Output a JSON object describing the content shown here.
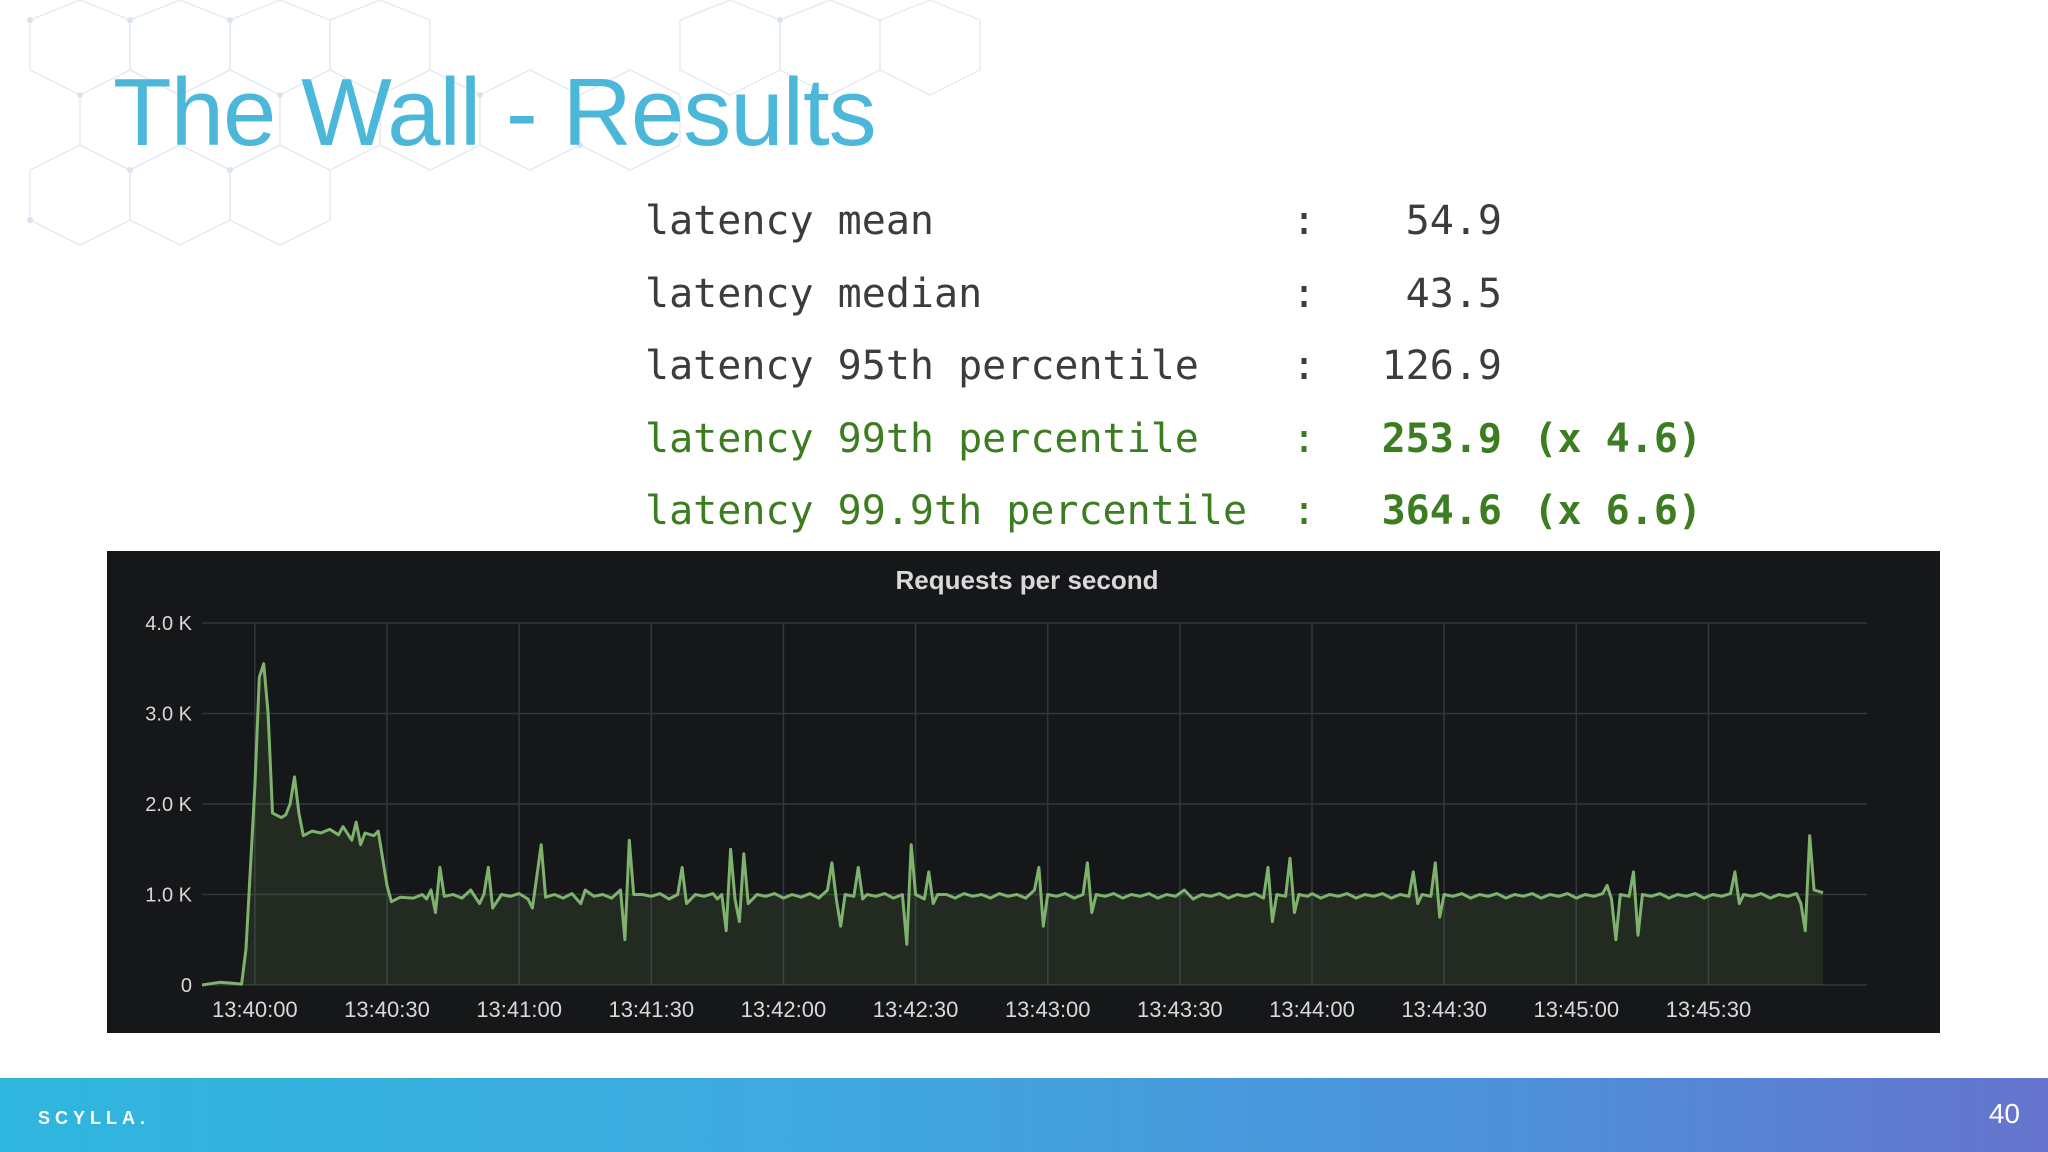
{
  "slide": {
    "title": "The Wall - Results",
    "page_number": "40",
    "logo_text": "SCYLLA.",
    "colors": {
      "title": "#4cb8d9",
      "highlight": "#3b7d20",
      "series": "#7eb26d",
      "panel": "#161719"
    }
  },
  "stats": [
    {
      "label": "latency mean",
      "colon": ":",
      "value": "54.9",
      "factor": "",
      "highlight": false
    },
    {
      "label": "latency median",
      "colon": ":",
      "value": "43.5",
      "factor": "",
      "highlight": false
    },
    {
      "label": "latency 95th percentile",
      "colon": ":",
      "value": "126.9",
      "factor": "",
      "highlight": false
    },
    {
      "label": "latency 99th percentile",
      "colon": ":",
      "value": "253.9",
      "factor": "(x 4.6)",
      "highlight": true
    },
    {
      "label": "latency 99.9th percentile",
      "colon": ":",
      "value": "364.6",
      "factor": "(x 6.6)",
      "highlight": true
    }
  ],
  "chart_data": {
    "type": "area",
    "title": "Requests per second",
    "xlabel": "",
    "ylabel": "",
    "x_range": [
      "13:39:48",
      "13:46:06"
    ],
    "ylim": [
      0,
      4000
    ],
    "y_ticks": [
      0,
      1000,
      2000,
      3000,
      4000
    ],
    "y_tick_labels": [
      "0",
      "1.0 K",
      "2.0 K",
      "3.0 K",
      "4.0 K"
    ],
    "x_tick_values": [
      "13:40:00",
      "13:40:30",
      "13:41:00",
      "13:41:30",
      "13:42:00",
      "13:42:30",
      "13:43:00",
      "13:43:30",
      "13:44:00",
      "13:44:30",
      "13:45:00",
      "13:45:30"
    ],
    "x_tick_labels": [
      "13:40:00",
      "13:40:30",
      "13:41:00",
      "13:41:30",
      "13:42:00",
      "13:42:30",
      "13:43:00",
      "13:43:30",
      "13:44:00",
      "13:44:30",
      "13:45:00",
      "13:45:30"
    ],
    "grid": true,
    "legend": "none",
    "series": [
      {
        "color": "#7eb26d",
        "points": [
          [
            "13:39:48",
            0
          ],
          [
            "13:39:52",
            30
          ],
          [
            "13:39:55",
            20
          ],
          [
            "13:39:57",
            10
          ],
          [
            "13:39:58",
            400
          ],
          [
            "13:40:00",
            2200
          ],
          [
            "13:40:01",
            3400
          ],
          [
            "13:40:02",
            3550
          ],
          [
            "13:40:03",
            3000
          ],
          [
            "13:40:04",
            1900
          ],
          [
            "13:40:06",
            1850
          ],
          [
            "13:40:07",
            1880
          ],
          [
            "13:40:08",
            2000
          ],
          [
            "13:40:09",
            2300
          ],
          [
            "13:40:10",
            1900
          ],
          [
            "13:40:11",
            1650
          ],
          [
            "13:40:13",
            1700
          ],
          [
            "13:40:15",
            1680
          ],
          [
            "13:40:17",
            1720
          ],
          [
            "13:40:19",
            1660
          ],
          [
            "13:40:20",
            1750
          ],
          [
            "13:40:22",
            1600
          ],
          [
            "13:40:23",
            1800
          ],
          [
            "13:40:24",
            1550
          ],
          [
            "13:40:25",
            1680
          ],
          [
            "13:40:27",
            1650
          ],
          [
            "13:40:28",
            1700
          ],
          [
            "13:40:29",
            1400
          ],
          [
            "13:40:30",
            1100
          ],
          [
            "13:40:31",
            920
          ],
          [
            "13:40:33",
            970
          ],
          [
            "13:40:36",
            960
          ],
          [
            "13:40:38",
            1000
          ],
          [
            "13:40:39",
            950
          ],
          [
            "13:40:40",
            1050
          ],
          [
            "13:40:41",
            800
          ],
          [
            "13:40:42",
            1300
          ],
          [
            "13:40:43",
            980
          ],
          [
            "13:40:45",
            1000
          ],
          [
            "13:40:47",
            960
          ],
          [
            "13:40:49",
            1050
          ],
          [
            "13:40:51",
            900
          ],
          [
            "13:40:52",
            1000
          ],
          [
            "13:40:53",
            1300
          ],
          [
            "13:40:54",
            850
          ],
          [
            "13:40:56",
            1000
          ],
          [
            "13:40:58",
            980
          ],
          [
            "13:41:00",
            1010
          ],
          [
            "13:41:02",
            950
          ],
          [
            "13:41:03",
            850
          ],
          [
            "13:41:05",
            1550
          ],
          [
            "13:41:06",
            970
          ],
          [
            "13:41:08",
            1000
          ],
          [
            "13:41:10",
            960
          ],
          [
            "13:41:12",
            1010
          ],
          [
            "13:41:14",
            900
          ],
          [
            "13:41:15",
            1050
          ],
          [
            "13:41:17",
            980
          ],
          [
            "13:41:19",
            1000
          ],
          [
            "13:41:21",
            960
          ],
          [
            "13:41:23",
            1050
          ],
          [
            "13:41:24",
            500
          ],
          [
            "13:41:25",
            1600
          ],
          [
            "13:41:26",
            1000
          ],
          [
            "13:41:28",
            1000
          ],
          [
            "13:41:30",
            980
          ],
          [
            "13:41:32",
            1010
          ],
          [
            "13:41:34",
            950
          ],
          [
            "13:41:36",
            1000
          ],
          [
            "13:41:37",
            1300
          ],
          [
            "13:41:38",
            900
          ],
          [
            "13:41:40",
            1000
          ],
          [
            "13:41:42",
            980
          ],
          [
            "13:41:44",
            1010
          ],
          [
            "13:41:45",
            950
          ],
          [
            "13:41:46",
            1000
          ],
          [
            "13:41:47",
            600
          ],
          [
            "13:41:48",
            1500
          ],
          [
            "13:41:49",
            950
          ],
          [
            "13:41:50",
            700
          ],
          [
            "13:41:51",
            1450
          ],
          [
            "13:41:52",
            900
          ],
          [
            "13:41:54",
            1000
          ],
          [
            "13:41:56",
            980
          ],
          [
            "13:41:58",
            1010
          ],
          [
            "13:42:00",
            960
          ],
          [
            "13:42:02",
            1000
          ],
          [
            "13:42:04",
            970
          ],
          [
            "13:42:06",
            1010
          ],
          [
            "13:42:08",
            960
          ],
          [
            "13:42:10",
            1050
          ],
          [
            "13:42:11",
            1350
          ],
          [
            "13:42:12",
            950
          ],
          [
            "13:42:13",
            650
          ],
          [
            "13:42:14",
            1000
          ],
          [
            "13:42:16",
            980
          ],
          [
            "13:42:17",
            1300
          ],
          [
            "13:42:18",
            950
          ],
          [
            "13:42:19",
            1000
          ],
          [
            "13:42:21",
            980
          ],
          [
            "13:42:23",
            1010
          ],
          [
            "13:42:25",
            960
          ],
          [
            "13:42:27",
            1000
          ],
          [
            "13:42:28",
            450
          ],
          [
            "13:42:29",
            1550
          ],
          [
            "13:42:30",
            1000
          ],
          [
            "13:42:32",
            950
          ],
          [
            "13:42:33",
            1250
          ],
          [
            "13:42:34",
            900
          ],
          [
            "13:42:35",
            1000
          ],
          [
            "13:42:37",
            1000
          ],
          [
            "13:42:39",
            960
          ],
          [
            "13:42:41",
            1010
          ],
          [
            "13:42:43",
            980
          ],
          [
            "13:42:45",
            1000
          ],
          [
            "13:42:47",
            960
          ],
          [
            "13:42:49",
            1010
          ],
          [
            "13:42:51",
            980
          ],
          [
            "13:42:53",
            1000
          ],
          [
            "13:42:55",
            960
          ],
          [
            "13:42:57",
            1050
          ],
          [
            "13:42:58",
            1300
          ],
          [
            "13:42:59",
            650
          ],
          [
            "13:43:00",
            1000
          ],
          [
            "13:43:02",
            980
          ],
          [
            "13:43:04",
            1010
          ],
          [
            "13:43:06",
            960
          ],
          [
            "13:43:08",
            1000
          ],
          [
            "13:43:09",
            1350
          ],
          [
            "13:43:10",
            800
          ],
          [
            "13:43:11",
            1000
          ],
          [
            "13:43:13",
            980
          ],
          [
            "13:43:15",
            1010
          ],
          [
            "13:43:17",
            960
          ],
          [
            "13:43:19",
            1000
          ],
          [
            "13:43:21",
            980
          ],
          [
            "13:43:23",
            1010
          ],
          [
            "13:43:25",
            960
          ],
          [
            "13:43:27",
            1000
          ],
          [
            "13:43:29",
            980
          ],
          [
            "13:43:31",
            1050
          ],
          [
            "13:43:33",
            950
          ],
          [
            "13:43:35",
            1000
          ],
          [
            "13:43:37",
            980
          ],
          [
            "13:43:39",
            1010
          ],
          [
            "13:43:41",
            960
          ],
          [
            "13:43:43",
            1000
          ],
          [
            "13:43:45",
            980
          ],
          [
            "13:43:47",
            1010
          ],
          [
            "13:43:49",
            960
          ],
          [
            "13:43:50",
            1300
          ],
          [
            "13:43:51",
            700
          ],
          [
            "13:43:52",
            1000
          ],
          [
            "13:43:54",
            980
          ],
          [
            "13:43:55",
            1400
          ],
          [
            "13:43:56",
            800
          ],
          [
            "13:43:57",
            1000
          ],
          [
            "13:43:59",
            980
          ],
          [
            "13:44:00",
            1010
          ],
          [
            "13:44:02",
            960
          ],
          [
            "13:44:04",
            1000
          ],
          [
            "13:44:06",
            980
          ],
          [
            "13:44:08",
            1010
          ],
          [
            "13:44:10",
            960
          ],
          [
            "13:44:12",
            1000
          ],
          [
            "13:44:14",
            980
          ],
          [
            "13:44:16",
            1010
          ],
          [
            "13:44:18",
            960
          ],
          [
            "13:44:20",
            1000
          ],
          [
            "13:44:22",
            980
          ],
          [
            "13:44:23",
            1250
          ],
          [
            "13:44:24",
            900
          ],
          [
            "13:44:25",
            1000
          ],
          [
            "13:44:27",
            980
          ],
          [
            "13:44:28",
            1350
          ],
          [
            "13:44:29",
            750
          ],
          [
            "13:44:30",
            1000
          ],
          [
            "13:44:32",
            980
          ],
          [
            "13:44:34",
            1010
          ],
          [
            "13:44:36",
            960
          ],
          [
            "13:44:38",
            1000
          ],
          [
            "13:44:40",
            980
          ],
          [
            "13:44:42",
            1010
          ],
          [
            "13:44:44",
            960
          ],
          [
            "13:44:46",
            1000
          ],
          [
            "13:44:48",
            980
          ],
          [
            "13:44:50",
            1010
          ],
          [
            "13:44:52",
            960
          ],
          [
            "13:44:54",
            1000
          ],
          [
            "13:44:56",
            980
          ],
          [
            "13:44:58",
            1010
          ],
          [
            "13:45:00",
            960
          ],
          [
            "13:45:02",
            1000
          ],
          [
            "13:45:04",
            980
          ],
          [
            "13:45:06",
            1010
          ],
          [
            "13:45:07",
            1100
          ],
          [
            "13:45:08",
            950
          ],
          [
            "13:45:09",
            500
          ],
          [
            "13:45:10",
            1000
          ],
          [
            "13:45:12",
            980
          ],
          [
            "13:45:13",
            1250
          ],
          [
            "13:45:14",
            550
          ],
          [
            "13:45:15",
            1000
          ],
          [
            "13:45:17",
            980
          ],
          [
            "13:45:19",
            1010
          ],
          [
            "13:45:21",
            960
          ],
          [
            "13:45:23",
            1000
          ],
          [
            "13:45:25",
            980
          ],
          [
            "13:45:27",
            1010
          ],
          [
            "13:45:29",
            960
          ],
          [
            "13:45:31",
            1000
          ],
          [
            "13:45:33",
            980
          ],
          [
            "13:45:35",
            1010
          ],
          [
            "13:45:36",
            1250
          ],
          [
            "13:45:37",
            900
          ],
          [
            "13:45:38",
            1000
          ],
          [
            "13:45:40",
            980
          ],
          [
            "13:45:42",
            1010
          ],
          [
            "13:45:44",
            960
          ],
          [
            "13:45:46",
            1000
          ],
          [
            "13:45:48",
            980
          ],
          [
            "13:45:50",
            1010
          ],
          [
            "13:45:51",
            900
          ],
          [
            "13:45:52",
            600
          ],
          [
            "13:45:53",
            1650
          ],
          [
            "13:45:54",
            1050
          ],
          [
            "13:45:56",
            1020
          ]
        ]
      }
    ]
  }
}
